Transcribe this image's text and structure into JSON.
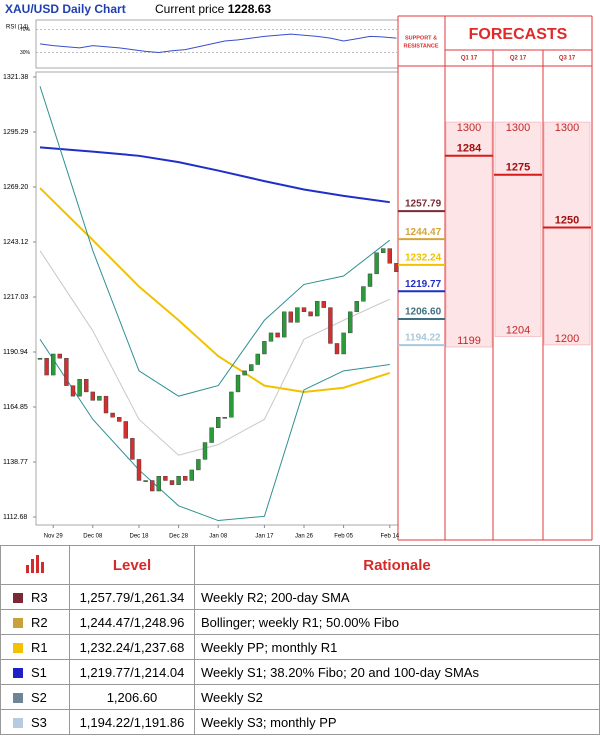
{
  "header": {
    "title": "XAU/USD Daily Chart",
    "current_price_label": "Current price",
    "current_price": 1228.63
  },
  "chart_data": [
    {
      "type": "line",
      "title": "RSI (14)",
      "x": [
        0,
        2,
        4,
        6,
        8,
        10,
        12,
        14,
        16,
        18,
        20,
        22,
        24,
        26,
        28,
        30,
        32,
        34,
        36,
        38,
        40,
        42,
        44,
        46,
        48,
        50,
        52,
        54
      ],
      "values": [
        45,
        42,
        40,
        38,
        42,
        40,
        38,
        35,
        32,
        30,
        33,
        35,
        40,
        45,
        50,
        52,
        55,
        58,
        60,
        62,
        60,
        58,
        55,
        50,
        54,
        58,
        57,
        55
      ],
      "color": "#3a4fc8",
      "ylim": [
        10,
        90
      ],
      "yticks": [
        {
          "value": 70,
          "label": "70%"
        },
        {
          "value": 30,
          "label": "30%"
        }
      ]
    },
    {
      "type": "candlestick",
      "values": [
        1188,
        1180,
        1190,
        1188,
        1175,
        1170,
        1178,
        1172,
        1168,
        1170,
        1162,
        1160,
        1158,
        1150,
        1140,
        1130,
        1130,
        1125,
        1132,
        1130,
        1128,
        1132,
        1130,
        1135,
        1140,
        1148,
        1155,
        1160,
        1160,
        1172,
        1180,
        1182,
        1185,
        1190,
        1196,
        1200,
        1198,
        1210,
        1205,
        1212,
        1210,
        1208,
        1215,
        1212,
        1195,
        1190,
        1200,
        1210,
        1215,
        1222,
        1228,
        1238,
        1240,
        1233,
        1229
      ],
      "xlim": [
        0,
        54
      ],
      "ylim": [
        1112.68,
        1321.38
      ],
      "yticks": [
        1321.38,
        1295.29,
        {
          "value": 1269.2,
          "label": "1269.20"
        },
        1243.12,
        1217.03,
        1190.94,
        1164.85,
        1138.77,
        1112.68
      ],
      "xticks": [
        {
          "value": 2,
          "label": "Nov 29"
        },
        {
          "value": 8,
          "label": "Dec 08"
        },
        {
          "value": 15,
          "label": "Dec 18"
        },
        {
          "value": 21,
          "label": "Dec 28"
        },
        {
          "value": 27,
          "label": "Jan 08"
        },
        {
          "value": 34,
          "label": "Jan 17"
        },
        {
          "value": 40,
          "label": "Jan 26"
        },
        {
          "value": 46,
          "label": "Feb 05"
        },
        {
          "value": 53,
          "label": "Feb 14"
        }
      ],
      "series": [
        {
          "color": "#1f2fc8",
          "x": [
            0,
            8,
            15,
            21,
            27,
            34,
            40,
            46,
            53
          ],
          "values": [
            1288,
            1286,
            1284,
            1281,
            1277,
            1272,
            1268,
            1265,
            1262
          ]
        },
        {
          "color": "#f2c200",
          "x": [
            0,
            8,
            15,
            21,
            27,
            34,
            40,
            46,
            53
          ],
          "values": [
            1268.7,
            1244,
            1222,
            1206,
            1189,
            1175,
            1172,
            1174,
            1181
          ]
        },
        {
          "color": "#2f8f93",
          "x": [
            0,
            8,
            15,
            21,
            27,
            34,
            40,
            46,
            53
          ],
          "values": [
            1317,
            1239,
            1182,
            1170,
            1175,
            1206,
            1223,
            1227,
            1244
          ]
        },
        {
          "color": "#2f8f93",
          "x": [
            0,
            8,
            15,
            21,
            27,
            34,
            40,
            46,
            53
          ],
          "values": [
            1197,
            1159,
            1135,
            1118,
            1111,
            1113,
            1173,
            1182,
            1185
          ]
        },
        {
          "color": "#c8c8c8",
          "x": [
            0,
            8,
            15,
            21,
            27,
            34,
            40,
            46,
            53
          ],
          "values": [
            1239,
            1201,
            1159,
            1142,
            1147,
            1159,
            1197,
            1206,
            1216
          ]
        }
      ],
      "levels": {
        "values": [
          1257.79,
          1244.47,
          1232.24,
          1219.77,
          1206.6,
          1194.22
        ],
        "value_labels": [
          "1257.79",
          "1244.47",
          "1232.24",
          "1219.77",
          "1206.60",
          "1194.22"
        ],
        "colors": [
          "#7a2a35",
          "#d4a53a",
          "#f2c200",
          "#1f2fc8",
          "#3f6f80",
          "#a8c8dc"
        ]
      },
      "levels_title": [
        "SUPPORT &",
        "RESISTANCE"
      ]
    },
    {
      "type": "range",
      "title": "FORECASTS",
      "categories": [
        "Q1 17",
        "Q2 17",
        "Q3 17"
      ],
      "high": [
        1300,
        1300,
        1300
      ],
      "values": [
        1284,
        1275,
        1250
      ],
      "low": [
        1199,
        1204,
        1200
      ],
      "color": "#fde4e6"
    }
  ],
  "table": {
    "header": [
      "Level",
      "Rationale"
    ],
    "rows": [
      {
        "name": "R3",
        "color": "#7a2a35",
        "level": "1,257.79/1,261.34",
        "rationale": "Weekly R2; 200-day SMA"
      },
      {
        "name": "R2",
        "color": "#c9a13a",
        "level": "1,244.47/1,248.96",
        "rationale": "Bollinger; weekly R1; 50.00% Fibo"
      },
      {
        "name": "R1",
        "color": "#f2c200",
        "level": "1,232.24/1,237.68",
        "rationale": "Weekly PP; monthly R1"
      },
      {
        "name": "S1",
        "color": "#1f1fc8",
        "level": "1,219.77/1,214.04",
        "rationale": "Weekly S1; 38.20% Fibo; 20 and 100-day SMAs"
      },
      {
        "name": "S2",
        "color": "#6f8596",
        "level": "1,206.60",
        "rationale": "Weekly S2"
      },
      {
        "name": "S3",
        "color": "#b5cce0",
        "level": "1,194.22/1,191.86",
        "rationale": "Weekly S3; monthly PP"
      }
    ]
  }
}
